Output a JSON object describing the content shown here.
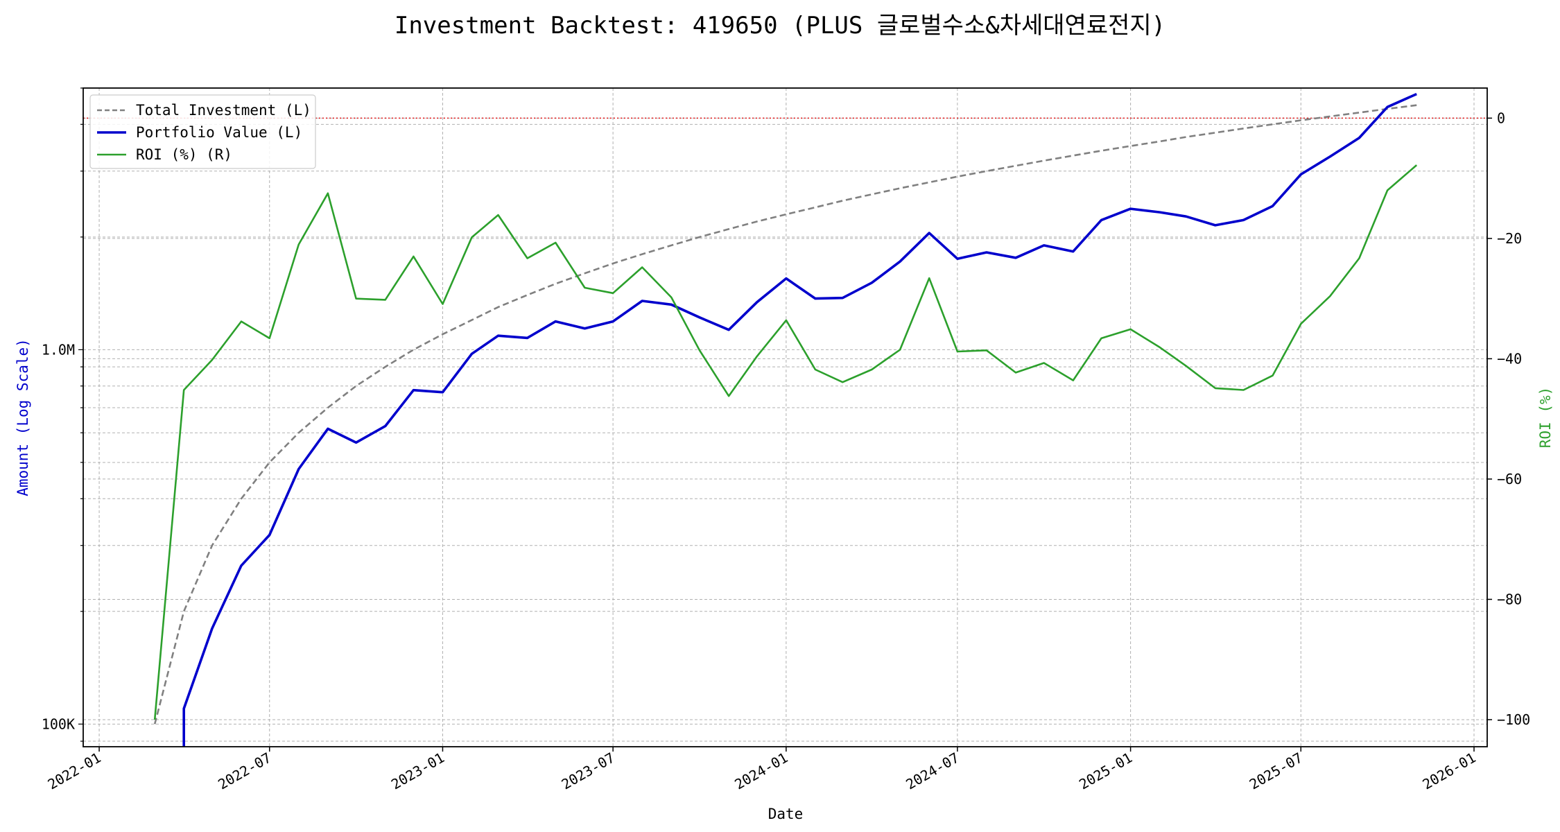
{
  "chart_data": {
    "type": "line",
    "title": "Investment Backtest: 419650 (PLUS 글로벌수소&차세대연료전지)",
    "xlabel": "Date",
    "ylabel_left": "Amount (Log Scale)",
    "ylabel_right": "ROI (%)",
    "x_ticks": [
      "2022-01",
      "2022-07",
      "2023-01",
      "2023-07",
      "2024-01",
      "2024-07",
      "2025-01",
      "2025-07",
      "2026-01"
    ],
    "y_left_scale": "log",
    "y_left_ticks": [
      {
        "value": 100000,
        "label": "100K"
      },
      {
        "value": 1000000,
        "label": "1.0M"
      }
    ],
    "y_left_range": [
      87000,
      5000000
    ],
    "y_right_ticks": [
      {
        "value": 0,
        "label": "0"
      },
      {
        "value": -20,
        "label": "−20"
      },
      {
        "value": -40,
        "label": "−40"
      },
      {
        "value": -60,
        "label": "−60"
      },
      {
        "value": -80,
        "label": "−80"
      },
      {
        "value": -100,
        "label": "−100"
      }
    ],
    "y_right_range": [
      -104.5,
      5
    ],
    "x_range": [
      "2021-12-15",
      "2026-01-15"
    ],
    "grid": true,
    "legend_position": "top-left",
    "zero_line": {
      "value": 0,
      "color": "#e31a1c",
      "style": "dotted"
    },
    "x": [
      "2022-03",
      "2022-04",
      "2022-05",
      "2022-06",
      "2022-07",
      "2022-08",
      "2022-09",
      "2022-10",
      "2022-11",
      "2022-12",
      "2023-01",
      "2023-02",
      "2023-03",
      "2023-04",
      "2023-05",
      "2023-06",
      "2023-07",
      "2023-08",
      "2023-09",
      "2023-10",
      "2023-11",
      "2023-12",
      "2024-01",
      "2024-02",
      "2024-03",
      "2024-04",
      "2024-05",
      "2024-06",
      "2024-07",
      "2024-08",
      "2024-09",
      "2024-10",
      "2024-11",
      "2024-12",
      "2025-01",
      "2025-02",
      "2025-03",
      "2025-04",
      "2025-05",
      "2025-06",
      "2025-07",
      "2025-08",
      "2025-09",
      "2025-10",
      "2025-11"
    ],
    "series": [
      {
        "name": "Total Investment (L)",
        "axis": "left",
        "color": "#808080",
        "style": "dashed",
        "values": [
          100000,
          200000,
          300000,
          400000,
          500000,
          600000,
          700000,
          800000,
          900000,
          1000000,
          1100000,
          1200000,
          1300000,
          1400000,
          1500000,
          1600000,
          1700000,
          1800000,
          1900000,
          2000000,
          2100000,
          2200000,
          2300000,
          2400000,
          2500000,
          2600000,
          2700000,
          2800000,
          2900000,
          3000000,
          3100000,
          3200000,
          3300000,
          3400000,
          3500000,
          3600000,
          3700000,
          3800000,
          3900000,
          4000000,
          4100000,
          4200000,
          4300000,
          4400000,
          4500000
        ]
      },
      {
        "name": "Portfolio Value (L)",
        "axis": "left",
        "color": "#0000cc",
        "style": "solid",
        "values": [
          null,
          110000,
          180000,
          265000,
          320000,
          480000,
          615000,
          565000,
          625000,
          780000,
          770000,
          975000,
          1090000,
          1075000,
          1190000,
          1140000,
          1190000,
          1350000,
          1320000,
          1220000,
          1130000,
          1340000,
          1550000,
          1370000,
          1375000,
          1510000,
          1720000,
          2050000,
          1750000,
          1820000,
          1760000,
          1900000,
          1830000,
          2220000,
          2380000,
          2330000,
          2270000,
          2150000,
          2220000,
          2420000,
          2940000,
          3280000,
          3680000,
          4450000,
          4820000
        ]
      },
      {
        "name": "ROI (%) (R)",
        "axis": "right",
        "color": "#2ca02c",
        "style": "solid",
        "values": [
          -100,
          -45.2,
          -40.2,
          -33.8,
          -36.6,
          -21,
          -12.5,
          -30,
          -30.2,
          -23,
          -30.9,
          -19.8,
          -16.1,
          -23.3,
          -20.7,
          -28.2,
          -29.1,
          -24.8,
          -29.8,
          -38.6,
          -46.2,
          -39.6,
          -33.6,
          -41.8,
          -43.9,
          -41.8,
          -38.5,
          -26.6,
          -38.8,
          -38.6,
          -42.3,
          -40.7,
          -43.6,
          -36.6,
          -35.1,
          -38.1,
          -41.2,
          -44.9,
          -45.2,
          -42.8,
          -34.2,
          -29.6,
          -23.3,
          -12,
          -7.8
        ]
      }
    ]
  }
}
